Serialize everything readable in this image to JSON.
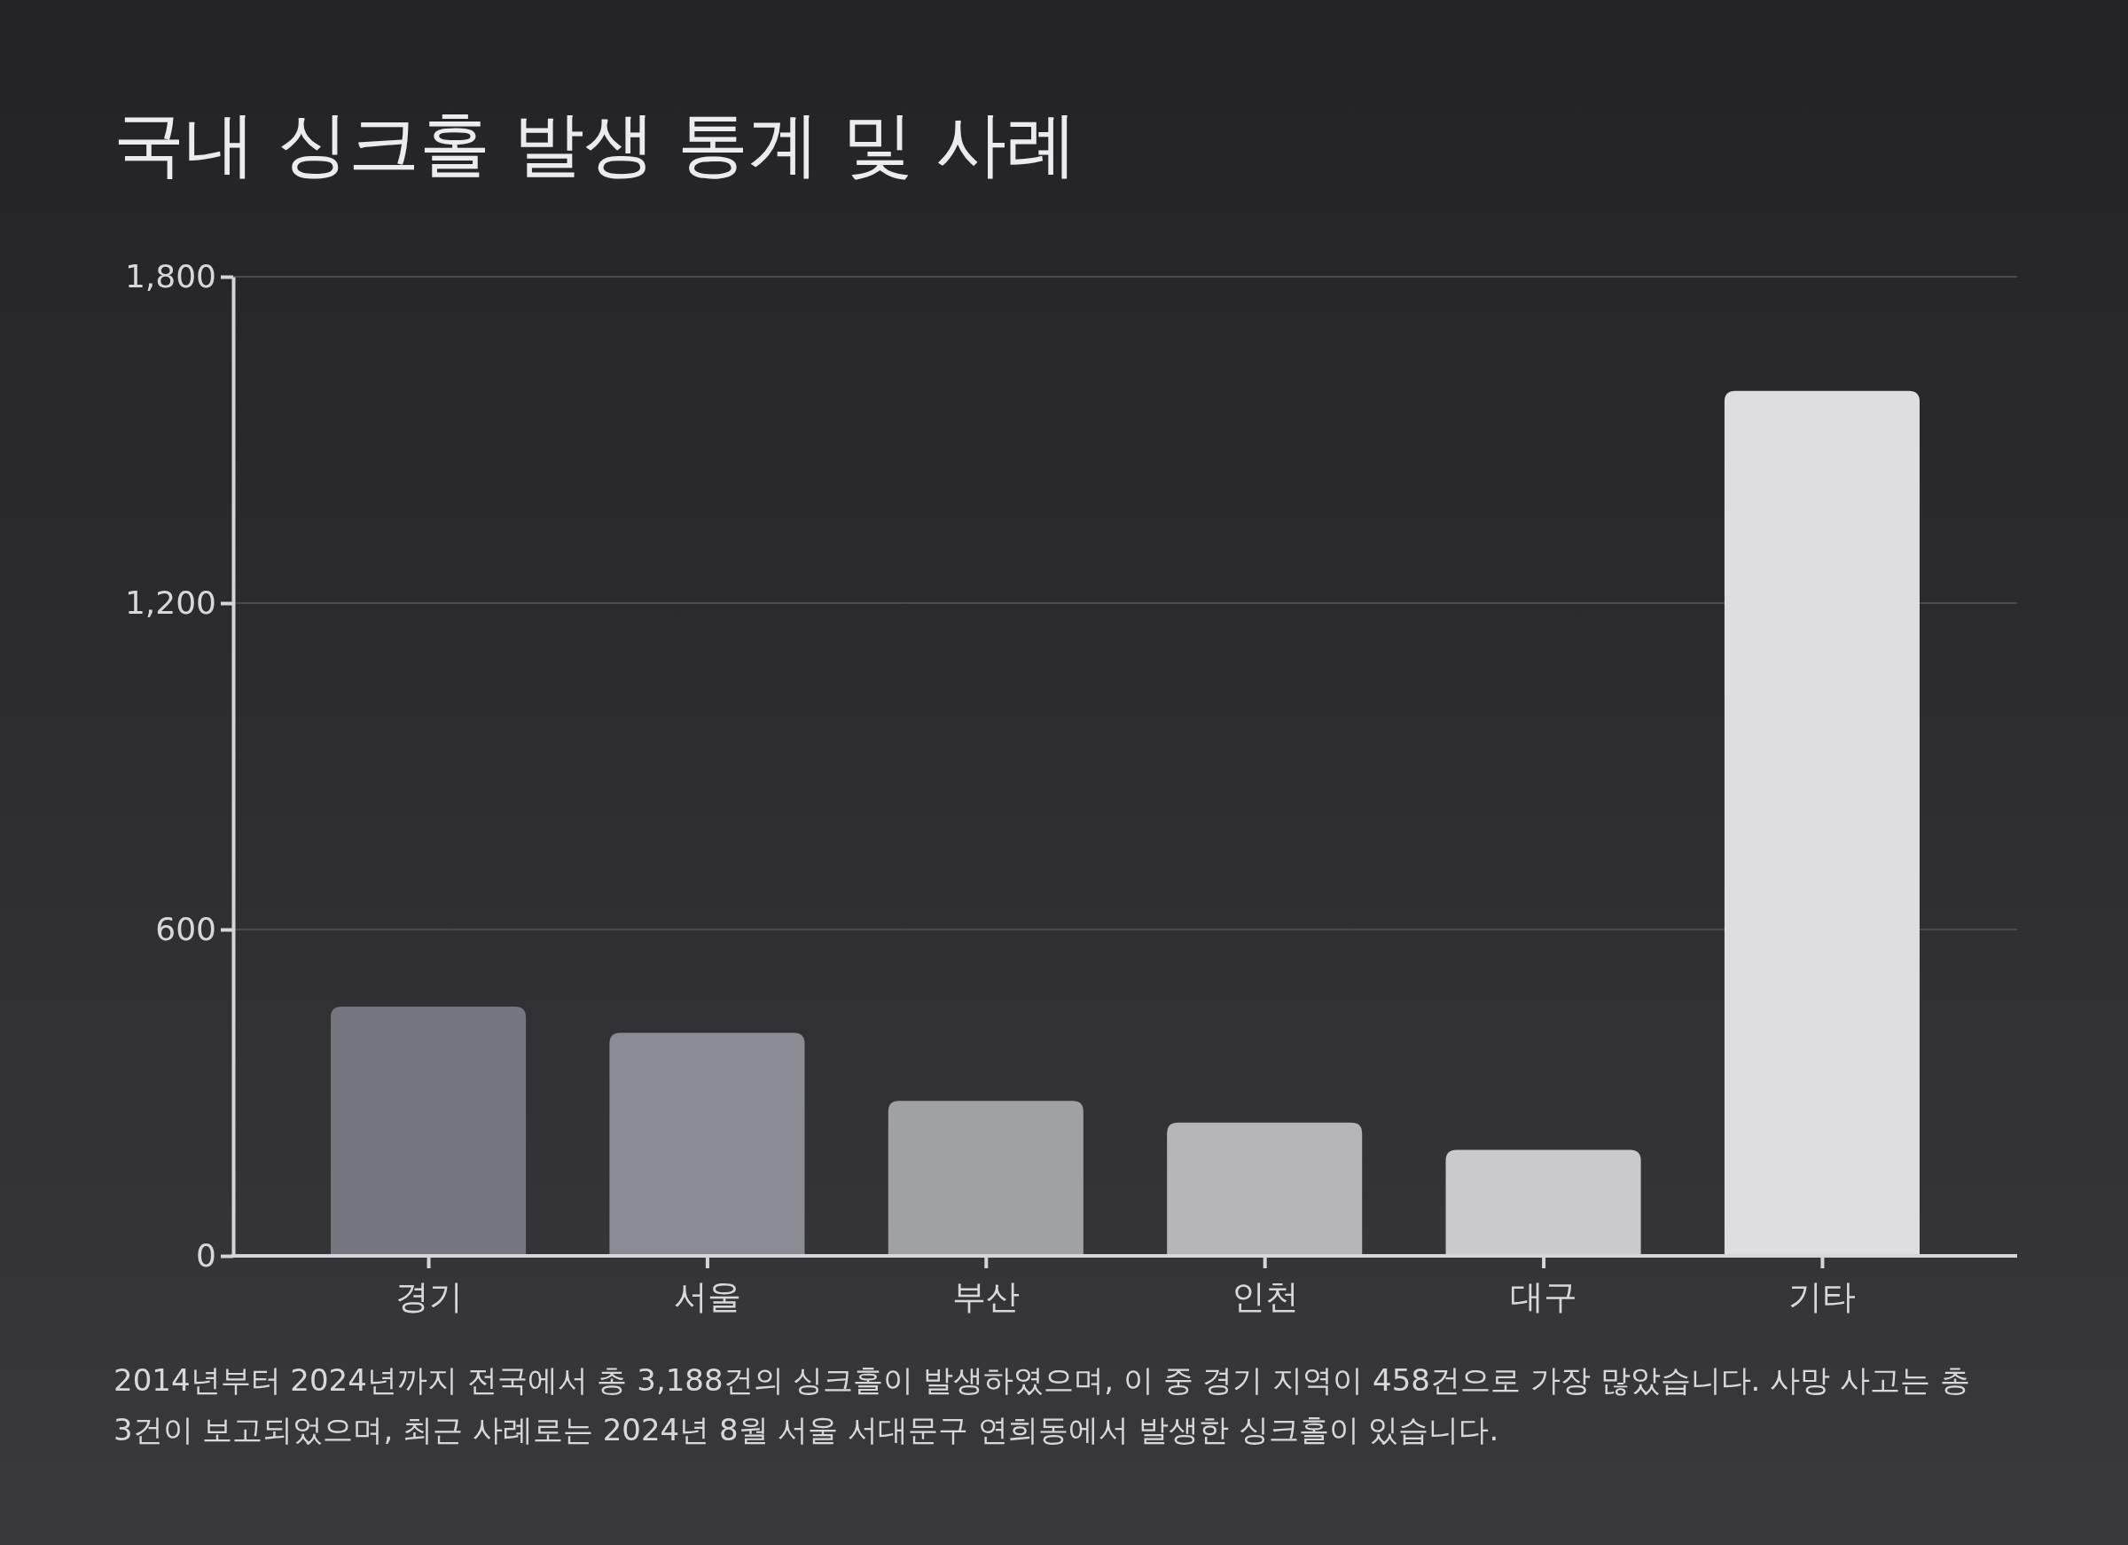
{
  "chart_data": {
    "type": "bar",
    "title": "국내 싱크홀 발생 통계 및 사례",
    "categories": [
      "경기",
      "서울",
      "부산",
      "인천",
      "대구",
      "기타"
    ],
    "values": [
      458,
      410,
      285,
      245,
      195,
      1590
    ],
    "colors": [
      "#76767e",
      "#8b8b94",
      "#a0a1a5",
      "#b5b4b9",
      "#cacacd",
      "#dedee0"
    ],
    "ylim": [
      0,
      1800
    ],
    "yticks": [
      0,
      {
        "value": 600,
        "label": "600"
      },
      {
        "value": 1200,
        "label": "1,200"
      },
      {
        "value": 1800,
        "label": "1,800"
      }
    ],
    "grid": "y",
    "annotations": [
      "2014년부터 2024년까지 전국에서 총 3,188건의 싱크홀이 발생하였으며, 이 중 경기 지역이 458건으로 가장 많았습니다. 사망 사고는 총 3건이 보고되었으며, 최근 사례로는 2024년 8월 서울 서대문구 연희동에서 발생한 싱크홀이 있습니다."
    ]
  }
}
